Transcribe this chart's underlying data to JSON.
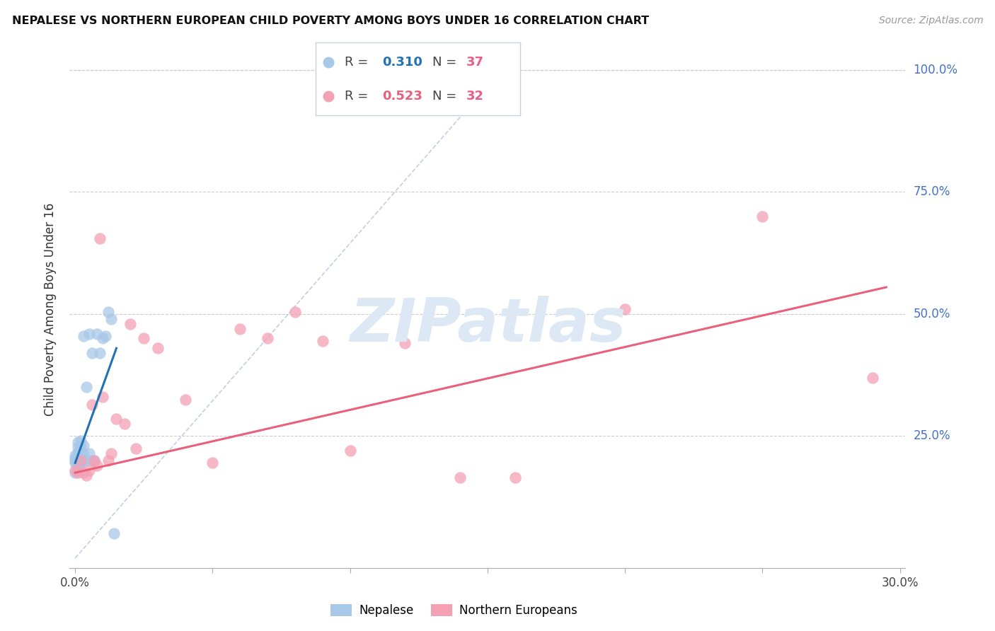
{
  "title": "NEPALESE VS NORTHERN EUROPEAN CHILD POVERTY AMONG BOYS UNDER 16 CORRELATION CHART",
  "source": "Source: ZipAtlas.com",
  "ylabel": "Child Poverty Among Boys Under 16",
  "xlim_min": -0.002,
  "xlim_max": 0.302,
  "ylim_min": -0.02,
  "ylim_max": 1.04,
  "nepalese_R": 0.31,
  "nepalese_N": 37,
  "northern_R": 0.523,
  "northern_N": 32,
  "nepalese_color": "#a8c8e8",
  "northern_color": "#f4a0b5",
  "nepalese_line_color": "#2171b5",
  "northern_line_color": "#e8607a",
  "reference_line_color": "#b8c8d8",
  "watermark_color": "#dce8f4",
  "watermark_text": "ZIPatlas",
  "background_color": "#ffffff",
  "ytick_color": "#4472c4",
  "nepalese_x": [
    0.0,
    0.0,
    0.0,
    0.0,
    0.0,
    0.001,
    0.001,
    0.001,
    0.001,
    0.001,
    0.001,
    0.001,
    0.001,
    0.002,
    0.002,
    0.002,
    0.002,
    0.002,
    0.002,
    0.003,
    0.003,
    0.003,
    0.003,
    0.004,
    0.004,
    0.005,
    0.005,
    0.006,
    0.006,
    0.007,
    0.008,
    0.009,
    0.01,
    0.011,
    0.012,
    0.013,
    0.014
  ],
  "nepalese_y": [
    0.195,
    0.2,
    0.205,
    0.21,
    0.175,
    0.185,
    0.198,
    0.208,
    0.218,
    0.228,
    0.238,
    0.192,
    0.202,
    0.195,
    0.208,
    0.218,
    0.228,
    0.24,
    0.195,
    0.2,
    0.215,
    0.23,
    0.455,
    0.2,
    0.35,
    0.215,
    0.46,
    0.42,
    0.2,
    0.2,
    0.46,
    0.42,
    0.45,
    0.455,
    0.505,
    0.49,
    0.05
  ],
  "northern_x": [
    0.0,
    0.001,
    0.002,
    0.003,
    0.004,
    0.005,
    0.006,
    0.007,
    0.008,
    0.009,
    0.01,
    0.012,
    0.013,
    0.015,
    0.018,
    0.02,
    0.022,
    0.025,
    0.03,
    0.04,
    0.05,
    0.06,
    0.07,
    0.08,
    0.09,
    0.1,
    0.12,
    0.14,
    0.16,
    0.2,
    0.25,
    0.29
  ],
  "northern_y": [
    0.18,
    0.175,
    0.2,
    0.175,
    0.17,
    0.18,
    0.315,
    0.2,
    0.19,
    0.655,
    0.33,
    0.2,
    0.215,
    0.285,
    0.275,
    0.48,
    0.225,
    0.45,
    0.43,
    0.325,
    0.195,
    0.47,
    0.45,
    0.505,
    0.445,
    0.22,
    0.44,
    0.165,
    0.165,
    0.51,
    0.7,
    0.37
  ],
  "ref_line_x": [
    0.0,
    0.155
  ],
  "ref_line_y": [
    0.0,
    1.0
  ],
  "nep_trend_x0": 0.0,
  "nep_trend_x1": 0.015,
  "nep_trend_y0": 0.195,
  "nep_trend_y1": 0.43,
  "nor_trend_x0": 0.0,
  "nor_trend_x1": 0.295,
  "nor_trend_y0": 0.175,
  "nor_trend_y1": 0.555
}
